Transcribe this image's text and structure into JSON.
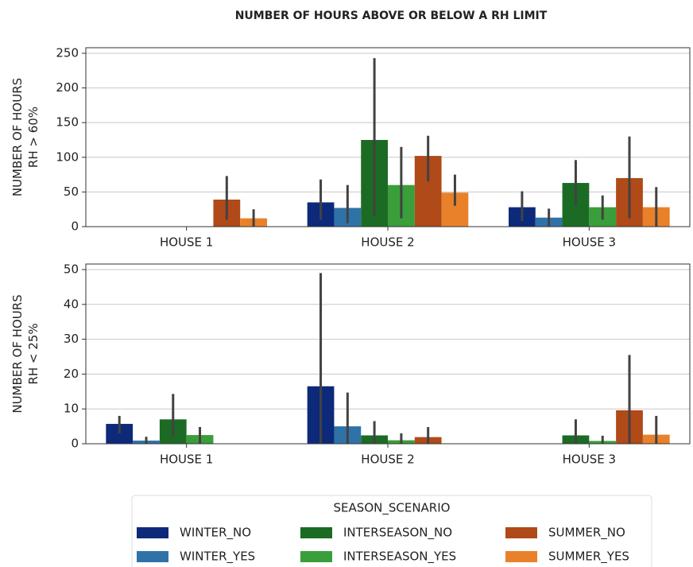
{
  "chart_data": [
    {
      "type": "bar",
      "title": "NUMBER OF HOURS ABOVE OR BELOW A RH LIMIT",
      "ylabel": [
        "NUMBER OF HOURS",
        "RH > 60%"
      ],
      "categories": [
        "HOUSE 1",
        "HOUSE 2",
        "HOUSE 3"
      ],
      "ylim": [
        0,
        258
      ],
      "yticks": [
        0,
        50,
        100,
        150,
        200,
        250
      ],
      "grid": true,
      "legend_title": "SEASON_SCENARIO",
      "series": [
        {
          "name": "WINTER_NO",
          "color": "#0d2a7a",
          "values": [
            null,
            35,
            28
          ],
          "ci": [
            null,
            [
              10,
              68
            ],
            [
              8,
              51
            ]
          ]
        },
        {
          "name": "WINTER_YES",
          "color": "#2f72a8",
          "values": [
            null,
            27,
            13
          ],
          "ci": [
            null,
            [
              5,
              60
            ],
            [
              0,
              26
            ]
          ]
        },
        {
          "name": "INTERSEASON_NO",
          "color": "#1b6b24",
          "values": [
            null,
            125,
            63
          ],
          "ci": [
            null,
            [
              15,
              243
            ],
            [
              30,
              96
            ]
          ]
        },
        {
          "name": "INTERSEASON_YES",
          "color": "#3a9e3a",
          "values": [
            null,
            60,
            28
          ],
          "ci": [
            null,
            [
              12,
              115
            ],
            [
              10,
              45
            ]
          ]
        },
        {
          "name": "SUMMER_NO",
          "color": "#b04a18",
          "values": [
            39,
            102,
            70
          ],
          "ci": [
            [
              10,
              73
            ],
            [
              65,
              131
            ],
            [
              12,
              130
            ]
          ]
        },
        {
          "name": "SUMMER_YES",
          "color": "#e8812a",
          "values": [
            12,
            49,
            28
          ],
          "ci": [
            [
              0,
              25
            ],
            [
              30,
              75
            ],
            [
              0,
              57
            ]
          ]
        }
      ]
    },
    {
      "type": "bar",
      "ylabel": [
        "NUMBER OF HOURS",
        "RH < 25%"
      ],
      "categories": [
        "HOUSE 1",
        "HOUSE 2",
        "HOUSE 3"
      ],
      "ylim": [
        0,
        51.6
      ],
      "yticks": [
        0,
        10,
        20,
        30,
        40,
        50
      ],
      "grid": true,
      "series": [
        {
          "name": "WINTER_NO",
          "color": "#0d2a7a",
          "values": [
            5.7,
            16.5,
            null
          ],
          "ci": [
            [
              3,
              8
            ],
            [
              0,
              49
            ],
            null
          ]
        },
        {
          "name": "WINTER_YES",
          "color": "#2f72a8",
          "values": [
            0.9,
            5,
            null
          ],
          "ci": [
            [
              0,
              2
            ],
            [
              0,
              14.7
            ],
            null
          ]
        },
        {
          "name": "INTERSEASON_NO",
          "color": "#1b6b24",
          "values": [
            7,
            2.4,
            2.4
          ],
          "ci": [
            [
              2,
              14.3
            ],
            [
              0,
              6.5
            ],
            [
              0,
              7
            ]
          ]
        },
        {
          "name": "INTERSEASON_YES",
          "color": "#3a9e3a",
          "values": [
            2.5,
            1,
            0.8
          ],
          "ci": [
            [
              0,
              4.8
            ],
            [
              0,
              3
            ],
            [
              0,
              2.3
            ]
          ]
        },
        {
          "name": "SUMMER_NO",
          "color": "#b04a18",
          "values": [
            null,
            1.9,
            9.6
          ],
          "ci": [
            null,
            [
              0,
              4.8
            ],
            [
              0,
              25.5
            ]
          ]
        },
        {
          "name": "SUMMER_YES",
          "color": "#e8812a",
          "values": [
            null,
            null,
            2.6
          ],
          "ci": [
            null,
            null,
            [
              0,
              8
            ]
          ]
        }
      ]
    }
  ]
}
